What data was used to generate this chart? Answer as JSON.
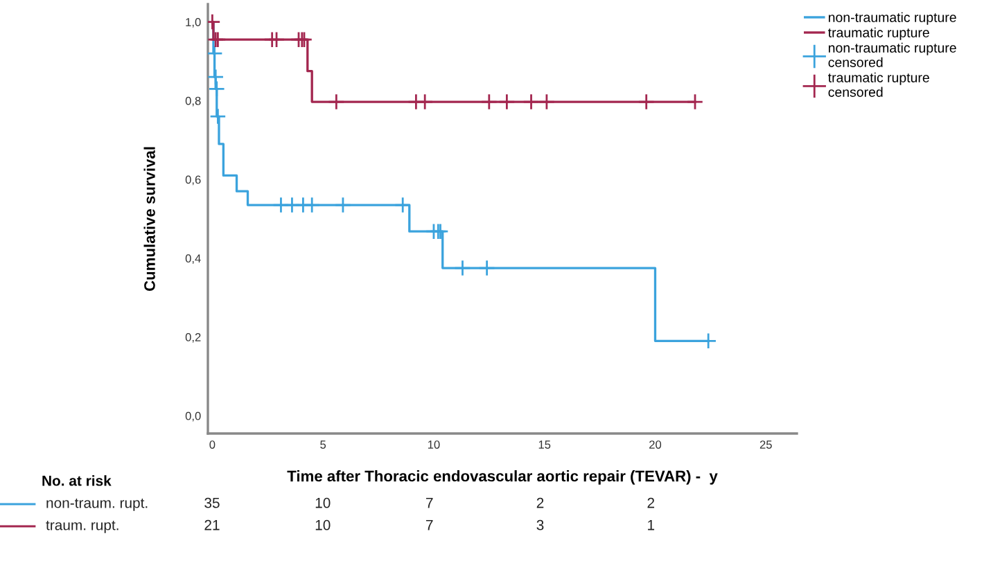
{
  "chart_data": {
    "type": "step",
    "xlabel": "Time after Thoracic endovascular aortic repair (TEVAR) -  y",
    "ylabel": "Cumulative survival",
    "xlim": [
      -0.2,
      26.4
    ],
    "ylim": [
      -0.045,
      1.045
    ],
    "xticks": [
      0,
      5,
      10,
      15,
      20,
      25
    ],
    "yticks": [
      {
        "value": 0,
        "label": "0,0"
      },
      {
        "value": 0.2,
        "label": "0,2"
      },
      {
        "value": 0.4,
        "label": "0,4"
      },
      {
        "value": 0.6,
        "label": "0,6"
      },
      {
        "value": 0.8,
        "label": "0,8"
      },
      {
        "value": 1.0,
        "label": "1,0"
      }
    ],
    "grid": false,
    "legend": "top right",
    "series": [
      {
        "name": "non-traumatic rupture",
        "color": "#3ba3dd",
        "x": [
          0,
          0.05,
          0.1,
          0.15,
          0.2,
          0.3,
          0.5,
          1.1,
          1.6,
          8.9,
          10.4,
          20.0,
          22.4
        ],
        "values": [
          1.0,
          0.92,
          0.86,
          0.83,
          0.76,
          0.69,
          0.61,
          0.57,
          0.535,
          0.468,
          0.375,
          0.19,
          0.19
        ]
      },
      {
        "name": "traumatic rupture",
        "color": "#a3264f",
        "x": [
          0,
          0.05,
          4.3,
          4.5,
          21.8
        ],
        "values": [
          1.0,
          0.955,
          0.875,
          0.797,
          0.797
        ]
      },
      {
        "name": "non-traumatic rupture\ncensored",
        "color": "#3ba3dd",
        "type": "scatter",
        "marker": "cross",
        "x": [
          0.1,
          0.15,
          0.2,
          0.25,
          3.1,
          3.6,
          4.1,
          4.5,
          5.9,
          8.6,
          10.0,
          10.2,
          10.3,
          11.3,
          12.4,
          22.4
        ],
        "values": [
          0.92,
          0.86,
          0.83,
          0.76,
          0.535,
          0.535,
          0.535,
          0.535,
          0.535,
          0.535,
          0.468,
          0.468,
          0.468,
          0.375,
          0.375,
          0.19
        ]
      },
      {
        "name": "traumatic rupture\ncensored",
        "color": "#a3264f",
        "type": "scatter",
        "marker": "cross",
        "x": [
          0,
          0.15,
          0.25,
          2.7,
          2.9,
          3.9,
          4.05,
          4.15,
          5.6,
          9.2,
          9.6,
          12.5,
          13.3,
          14.4,
          15.1,
          19.6,
          21.8
        ],
        "values": [
          1.0,
          0.955,
          0.955,
          0.955,
          0.955,
          0.955,
          0.955,
          0.955,
          0.797,
          0.797,
          0.797,
          0.797,
          0.797,
          0.797,
          0.797,
          0.797,
          0.797
        ]
      }
    ],
    "annotations": [
      "No. at risk",
      "non-traum. rupt.",
      "35",
      "10",
      "7",
      "2",
      "2",
      "traum. rupt.",
      "21",
      "10",
      "7",
      "3",
      "1"
    ]
  }
}
